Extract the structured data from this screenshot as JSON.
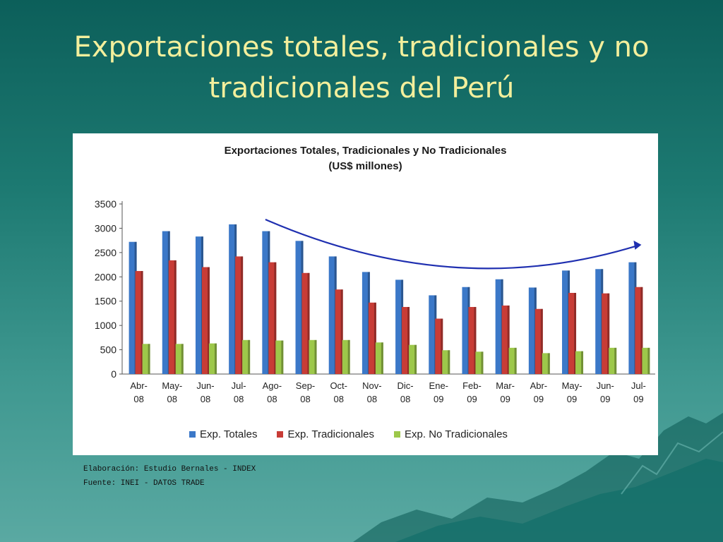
{
  "slide": {
    "title_line1": "Exportaciones totales, tradicionales y no",
    "title_line2": "tradicionales del Perú"
  },
  "chart_data": {
    "type": "bar",
    "title": "Exportaciones Totales, Tradicionales y No Tradicionales",
    "subtitle": "(US$ millones)",
    "categories": [
      [
        "Abr-",
        "08"
      ],
      [
        "May-",
        "08"
      ],
      [
        "Jun-",
        "08"
      ],
      [
        "Jul-",
        "08"
      ],
      [
        "Ago-",
        "08"
      ],
      [
        "Sep-",
        "08"
      ],
      [
        "Oct-",
        "08"
      ],
      [
        "Nov-",
        "08"
      ],
      [
        "Dic-",
        "08"
      ],
      [
        "Ene-",
        "09"
      ],
      [
        "Feb-",
        "09"
      ],
      [
        "Mar-",
        "09"
      ],
      [
        "Abr-",
        "09"
      ],
      [
        "May-",
        "09"
      ],
      [
        "Jun-",
        "09"
      ],
      [
        "Jul-",
        "09"
      ]
    ],
    "series": [
      {
        "name": "Exp. Totales",
        "color": "#3b78c8",
        "values": [
          2720,
          2940,
          2830,
          3080,
          2940,
          2740,
          2420,
          2100,
          1940,
          1620,
          1790,
          1950,
          1780,
          2130,
          2160,
          2300
        ]
      },
      {
        "name": "Exp. Tradicionales",
        "color": "#c83c36",
        "values": [
          2120,
          2340,
          2200,
          2420,
          2300,
          2080,
          1740,
          1470,
          1380,
          1140,
          1380,
          1410,
          1340,
          1670,
          1660,
          1790
        ]
      },
      {
        "name": "Exp. No Tradicionales",
        "color": "#9dc84a",
        "values": [
          620,
          620,
          630,
          700,
          690,
          700,
          700,
          650,
          600,
          490,
          460,
          540,
          430,
          470,
          540,
          540
        ]
      }
    ],
    "y_ticks": [
      "0",
      "500",
      "1000",
      "1500",
      "2000",
      "2500",
      "3000",
      "3500"
    ],
    "ylim": [
      0,
      3500
    ],
    "grid": false,
    "legend_position": "bottom"
  },
  "source": {
    "line1": "Elaboración: Estudio Bernales - INDEX",
    "line2": "Fuente: INEI - DATOS TRADE"
  }
}
